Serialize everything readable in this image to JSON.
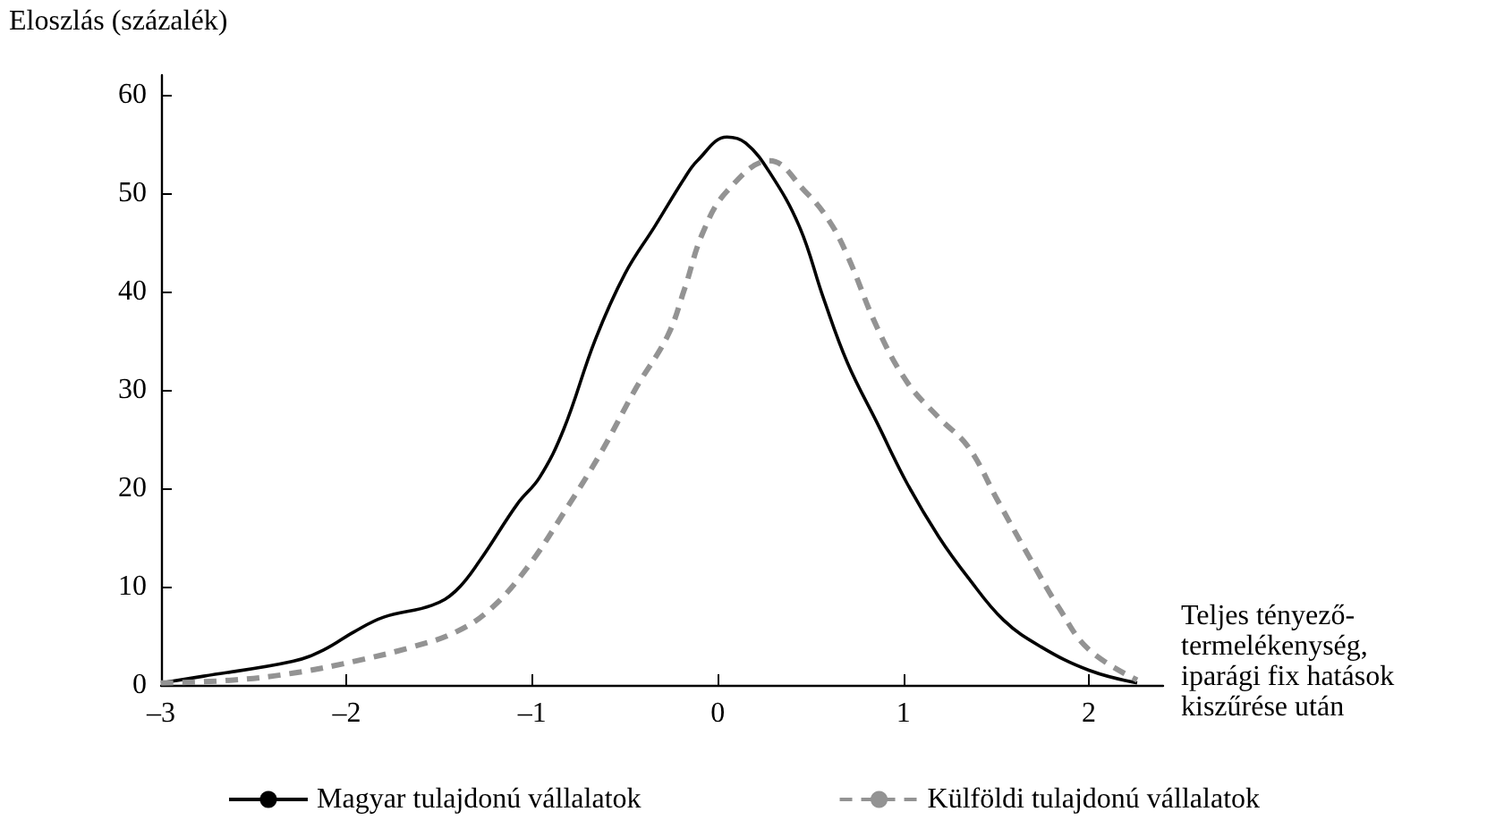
{
  "chart_data": {
    "type": "line",
    "ylabel": "Eloszlás (százalék)",
    "xlabel": "Teljes tényező-\ntermelékenység,\niparági fix hatások\nkiszűrése után",
    "xlim": [
      -3,
      2.4
    ],
    "xticks": [
      {
        "value": -3,
        "label": "–3"
      },
      {
        "value": -2,
        "label": "–2"
      },
      {
        "value": -1,
        "label": "–1"
      },
      0,
      1,
      2
    ],
    "ylim": [
      0,
      62
    ],
    "yticks": [
      0,
      10,
      20,
      30,
      40,
      50,
      60
    ],
    "grid": false,
    "legend": "bottom",
    "marker": "none",
    "series": [
      {
        "name": "Magyar tulajdonú vállalatok",
        "color": "#000000",
        "line_style": "solid",
        "x": [
          -3,
          -2.77,
          -2.29,
          -2.12,
          -1.96,
          -1.8,
          -1.54,
          -1.41,
          -1.28,
          -1.08,
          -0.96,
          -0.83,
          -0.66,
          -0.5,
          -0.34,
          -0.18,
          -0.11,
          0.05,
          0.15,
          0.28,
          0.44,
          0.57,
          0.7,
          0.86,
          1.02,
          1.19,
          1.35,
          1.54,
          1.74,
          2.0,
          2.26
        ],
        "values": [
          0.2,
          0.9,
          2.4,
          3.6,
          5.4,
          6.9,
          8.1,
          9.6,
          12.7,
          18.4,
          21.1,
          26,
          35.1,
          41.8,
          46.6,
          51.5,
          53.3,
          55.7,
          55.1,
          52.1,
          46.6,
          39.3,
          32.7,
          26.6,
          20.5,
          15.1,
          10.9,
          6.6,
          3.9,
          1.5,
          0.2
        ]
      },
      {
        "name": "Külföldi tulajdonú vállalatok",
        "color": "#939393",
        "line_style": "dashed",
        "x": [
          -3,
          -2.61,
          -2.29,
          -1.96,
          -1.64,
          -1.41,
          -1.22,
          -1.02,
          -0.83,
          -0.63,
          -0.44,
          -0.27,
          -0.18,
          -0.08,
          0.05,
          0.28,
          0.47,
          0.6,
          0.7,
          0.86,
          1.02,
          1.19,
          1.35,
          1.51,
          1.67,
          1.84,
          2.0,
          2.26
        ],
        "values": [
          0.2,
          0.5,
          1.2,
          2.4,
          3.9,
          5.4,
          7.8,
          12.1,
          17.5,
          23.6,
          30.2,
          35.5,
          40.2,
          46,
          50.2,
          53.3,
          50.2,
          47.2,
          43.6,
          36.3,
          30.8,
          27.2,
          24.2,
          18.7,
          13.3,
          7.8,
          3.6,
          0.5
        ]
      }
    ]
  }
}
